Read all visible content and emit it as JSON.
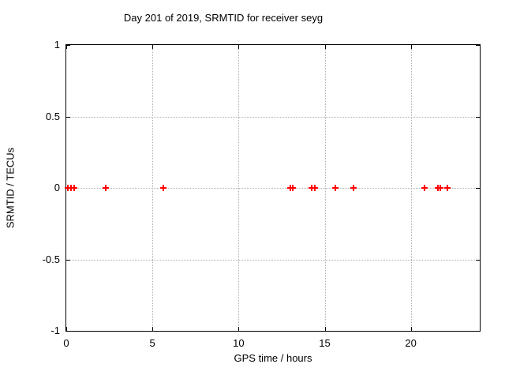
{
  "window": {
    "background": "#ffffff"
  },
  "colors": {
    "marker": "#ff0000",
    "grid": "#b0b0b0",
    "axis": "#000000",
    "background": "#ffffff"
  },
  "chart_data": {
    "type": "scatter",
    "title": "Day 201 of 2019, SRMTID for receiver seyg",
    "xlabel": "GPS time / hours",
    "ylabel": "SRMTID / TECUs",
    "xlim": [
      0,
      24
    ],
    "ylim": [
      -1,
      1
    ],
    "xticks": [
      0,
      5,
      10,
      15,
      20
    ],
    "xtick_labels": [
      "0",
      "5",
      "10",
      "15",
      "20"
    ],
    "yticks": [
      1,
      0.5,
      0,
      -0.5,
      -1
    ],
    "ytick_labels": [
      "1",
      "0.5",
      "0",
      "-0.5",
      "-1"
    ],
    "grid": true,
    "grid_x": [
      5,
      10,
      15,
      20
    ],
    "grid_y": [
      0.5,
      0,
      -0.5
    ],
    "legend_position": "none",
    "marker_style": "plus",
    "series": [
      {
        "name": "SRMTID",
        "color": "#ff0000",
        "x": [
          0.1,
          0.28,
          0.45,
          2.3,
          5.65,
          13.0,
          13.15,
          14.25,
          14.45,
          15.6,
          16.65,
          20.8,
          21.55,
          21.7,
          22.1
        ],
        "y": [
          0,
          0,
          0,
          0,
          0,
          0,
          0,
          0,
          0,
          0,
          0,
          0,
          0,
          0,
          0
        ]
      }
    ]
  }
}
